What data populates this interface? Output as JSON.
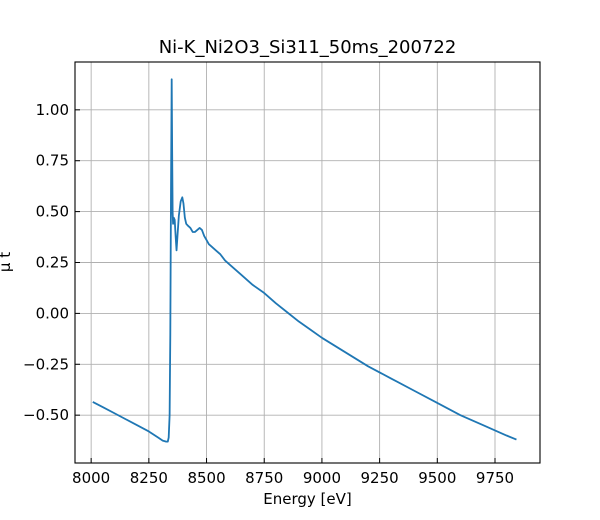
{
  "chart_data": {
    "type": "line",
    "title": "Ni-K_Ni2O3_Si311_50ms_200722",
    "xlabel": "Energy [eV]",
    "ylabel": "μ t",
    "xlim": [
      7930,
      9945
    ],
    "ylim": [
      -0.735,
      1.235
    ],
    "grid": true,
    "x_ticks": [
      8000,
      8250,
      8500,
      8750,
      9000,
      9250,
      9500,
      9750
    ],
    "y_ticks": [
      1.0,
      0.75,
      0.5,
      0.25,
      0.0,
      -0.25,
      -0.5
    ],
    "y_tick_labels": [
      "1.00",
      "0.75",
      "0.50",
      "0.25",
      "0.00",
      "−0.25",
      "−0.50"
    ],
    "series": [
      {
        "color": "#1f77b4",
        "x": [
          8007,
          8050,
          8100,
          8150,
          8200,
          8250,
          8290,
          8310,
          8325,
          8332,
          8336,
          8340,
          8343,
          8346,
          8349,
          8351,
          8353,
          8355,
          8358,
          8362,
          8366,
          8370,
          8374,
          8380,
          8388,
          8395,
          8400,
          8406,
          8412,
          8420,
          8430,
          8440,
          8450,
          8460,
          8470,
          8480,
          8490,
          8500,
          8510,
          8520,
          8540,
          8560,
          8580,
          8600,
          8650,
          8700,
          8750,
          8800,
          8850,
          8900,
          8950,
          9000,
          9100,
          9200,
          9300,
          9400,
          9500,
          9600,
          9700,
          9800,
          9843
        ],
        "y": [
          -0.435,
          -0.46,
          -0.49,
          -0.52,
          -0.55,
          -0.58,
          -0.61,
          -0.625,
          -0.63,
          -0.63,
          -0.61,
          -0.5,
          -0.1,
          0.6,
          1.15,
          0.8,
          0.5,
          0.44,
          0.47,
          0.46,
          0.38,
          0.31,
          0.38,
          0.48,
          0.55,
          0.57,
          0.54,
          0.47,
          0.44,
          0.43,
          0.42,
          0.4,
          0.4,
          0.41,
          0.42,
          0.41,
          0.38,
          0.36,
          0.34,
          0.33,
          0.31,
          0.29,
          0.26,
          0.24,
          0.19,
          0.14,
          0.1,
          0.05,
          0.005,
          -0.04,
          -0.08,
          -0.12,
          -0.19,
          -0.26,
          -0.32,
          -0.38,
          -0.44,
          -0.5,
          -0.55,
          -0.6,
          -0.62
        ]
      }
    ]
  }
}
